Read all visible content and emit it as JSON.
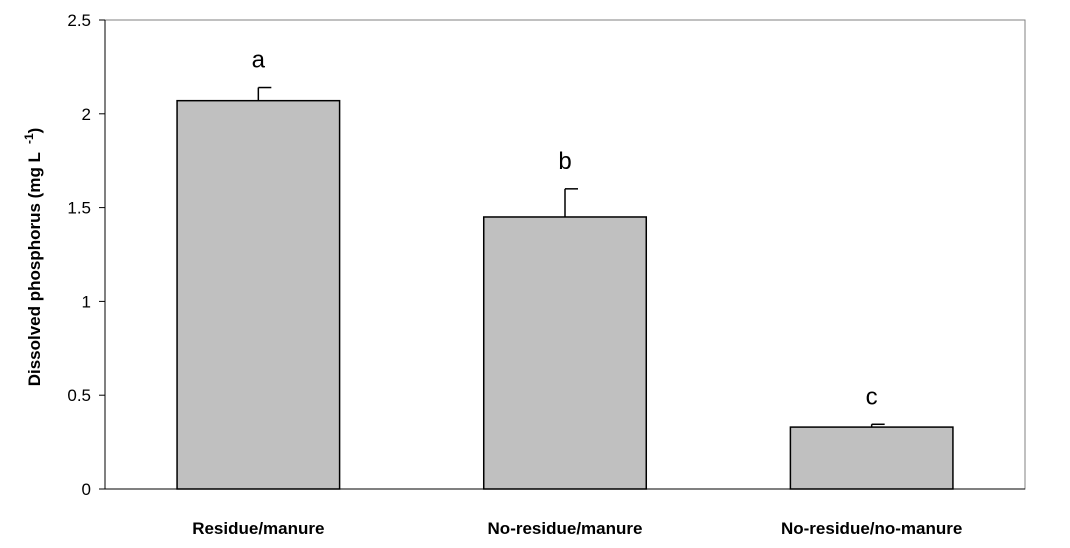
{
  "chart_data": {
    "type": "bar",
    "categories": [
      "Residue/manure",
      "No-residue/manure",
      "No-residue/no-manure"
    ],
    "values": [
      2.07,
      1.45,
      0.33
    ],
    "errors": [
      0.07,
      0.15,
      0.015
    ],
    "significance_letters": [
      "a",
      "b",
      "c"
    ],
    "title": "",
    "xlabel": "",
    "ylabel": "Dissolved phosphorus (mg L",
    "ylabel_superscript": "-1",
    "ylabel_close": ")",
    "ylim": [
      0,
      2.5
    ],
    "yticks": [
      0,
      0.5,
      1,
      1.5,
      2,
      2.5
    ],
    "ytick_labels": [
      "0",
      "0.5",
      "1",
      "1.5",
      "2",
      "2.5"
    ],
    "grid": false,
    "bar_color": "#c0c0c0",
    "bar_edge_color": "#000000"
  }
}
